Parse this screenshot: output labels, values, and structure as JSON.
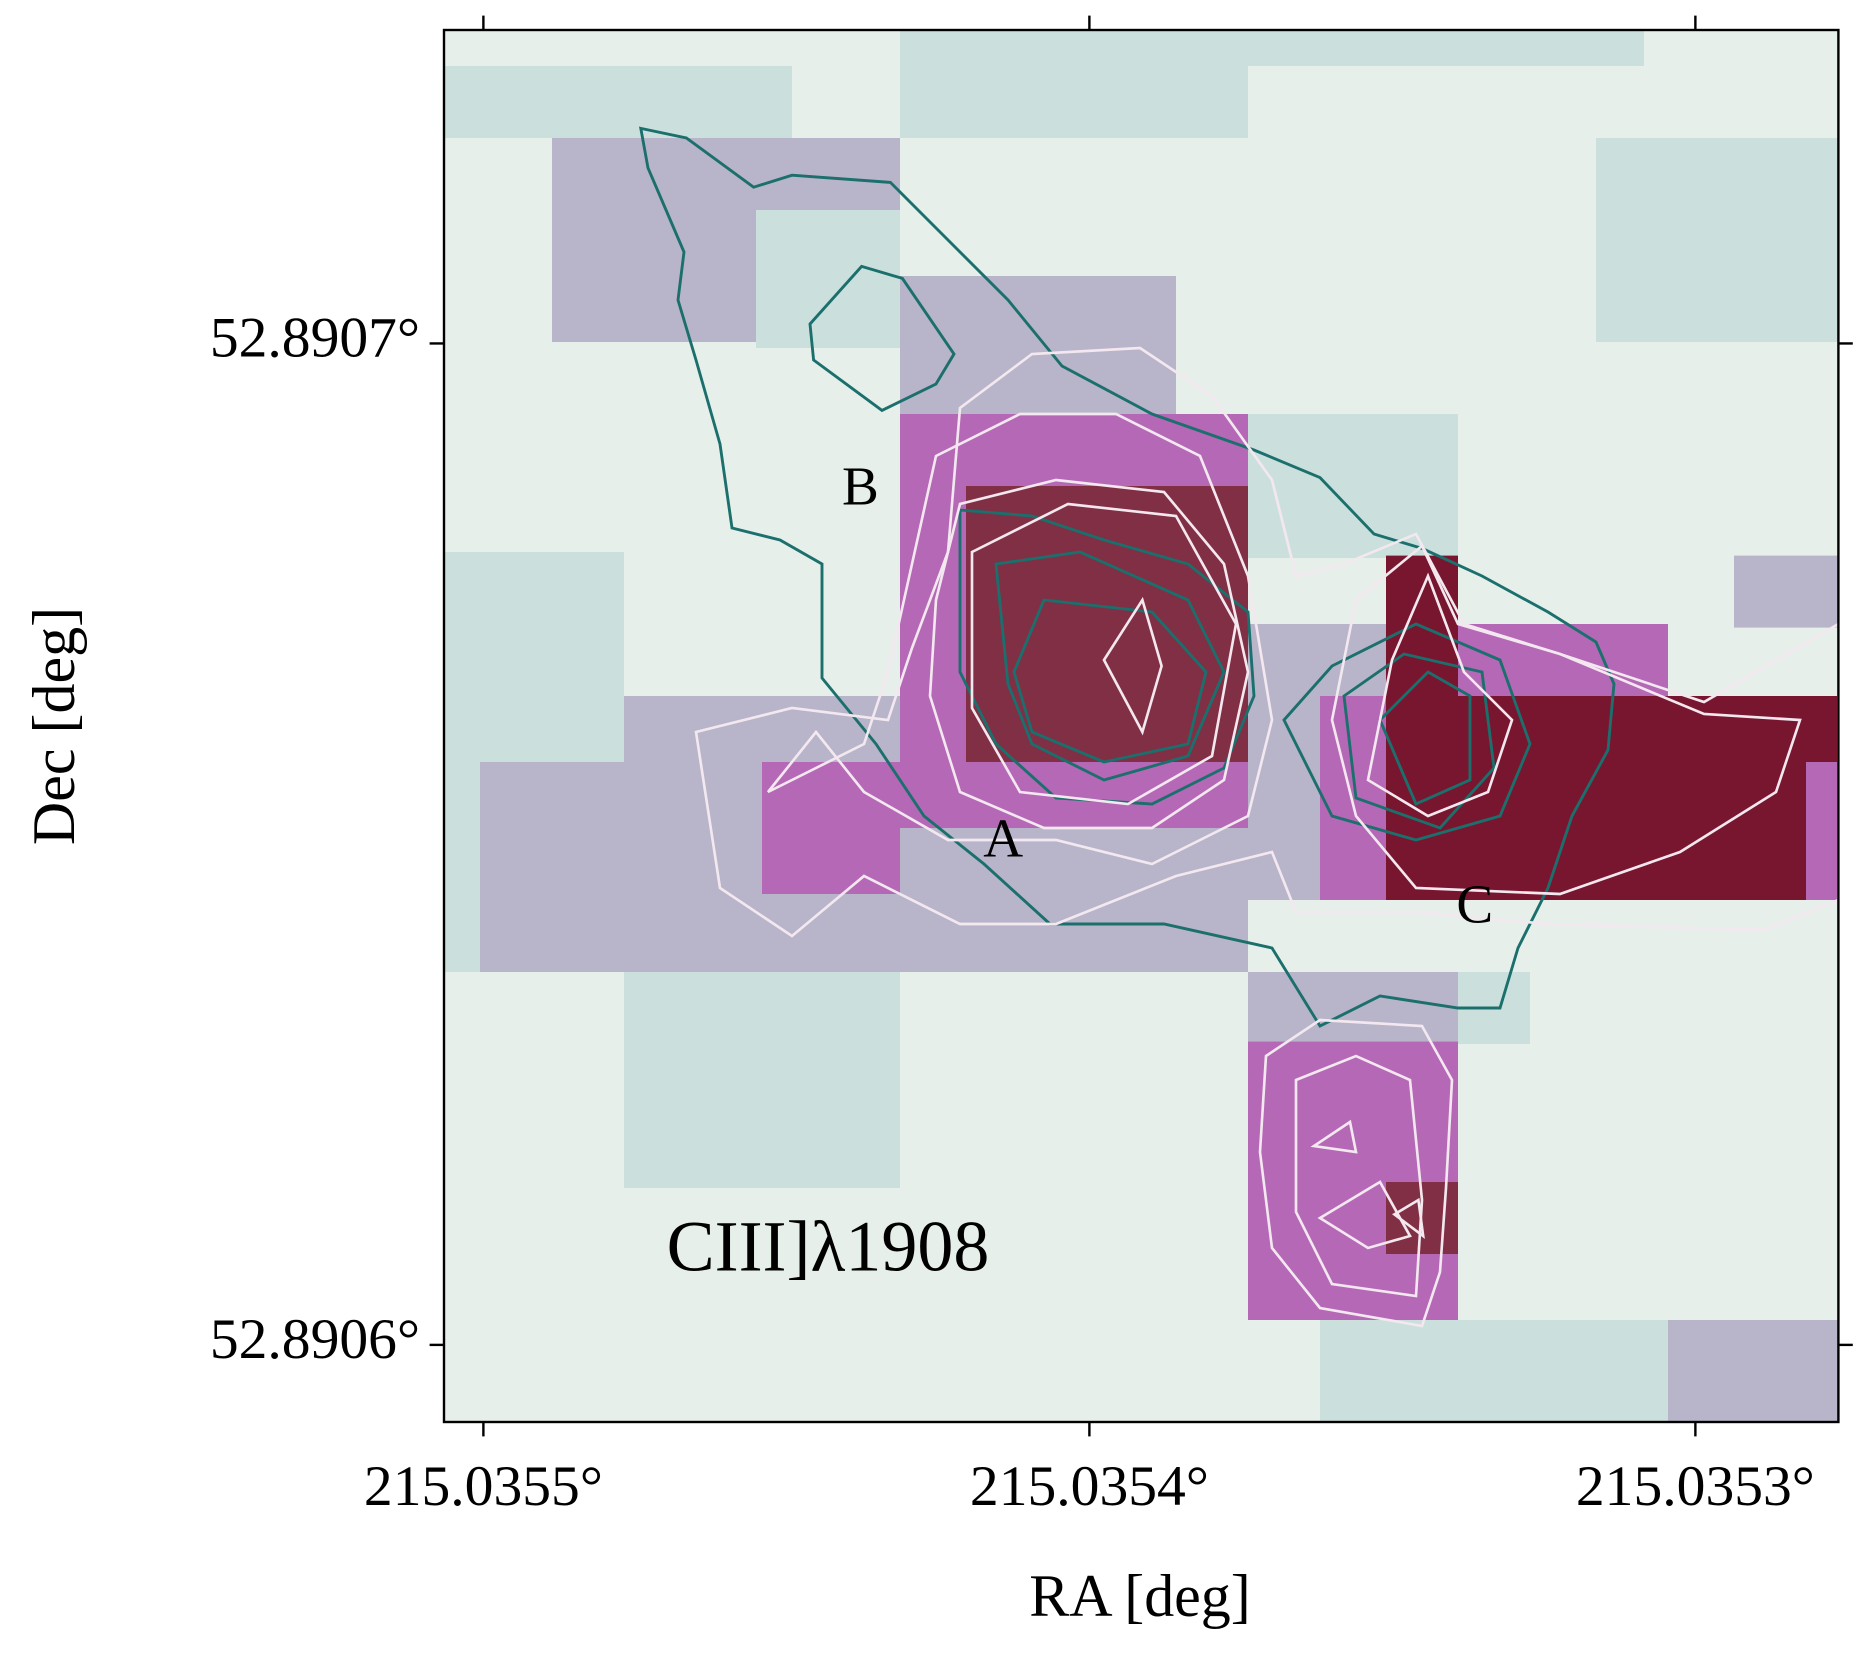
{
  "chart_data": {
    "type": "image",
    "title": "CIII]λ1908",
    "x_label": "RA [deg]",
    "y_label": "Dec [deg]",
    "annotations": [
      "A",
      "B",
      "C"
    ],
    "xlim": [
      215.0355065,
      215.0352764
    ],
    "ylim": [
      52.8905923,
      52.8907313
    ],
    "xticks": [
      {
        "value": 215.0355,
        "label": "215.0355°"
      },
      {
        "value": 215.0354,
        "label": "215.0354°"
      },
      {
        "value": 215.0353,
        "label": "215.0353°"
      }
    ],
    "yticks": [
      {
        "value": 52.8906,
        "label": "52.8906°"
      },
      {
        "value": 52.8907,
        "label": "52.8907°"
      }
    ]
  }
}
